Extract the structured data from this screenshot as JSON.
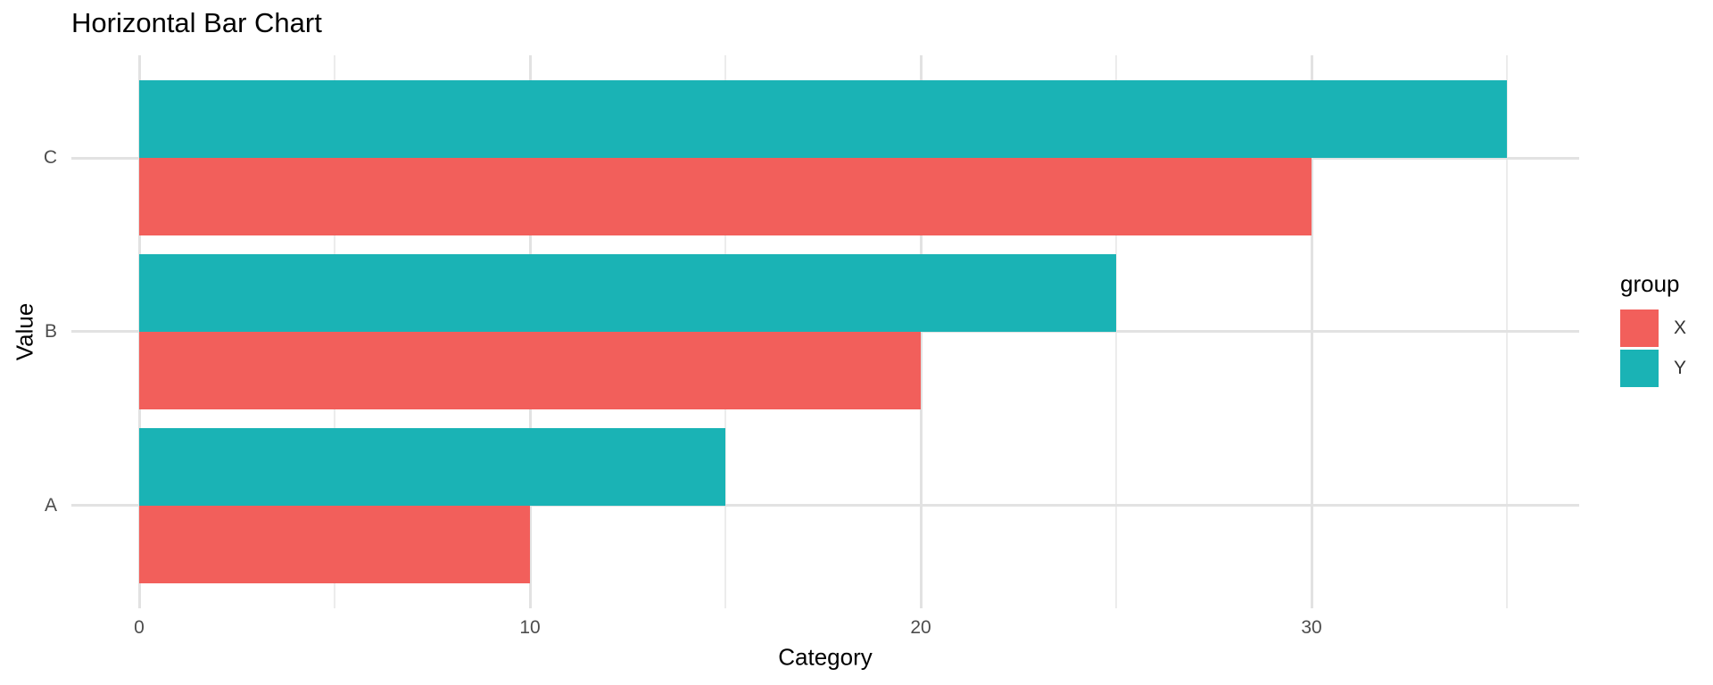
{
  "title": "Horizontal Bar Chart",
  "colors": {
    "background": "#FFFFFF",
    "series_x_red": "#F25F5B",
    "series_y_teal": "#1AB3B5",
    "grid_major": "#E2E2E2",
    "grid_minor": "#ECECEC",
    "axis_text": "#4D4D4D",
    "title_text": "#000000"
  },
  "chart_data": {
    "type": "bar",
    "orientation": "horizontal",
    "title": "Horizontal Bar Chart",
    "xlabel": "Category",
    "ylabel": "Value",
    "categories": [
      "A",
      "B",
      "C"
    ],
    "categories_display_order": [
      "C",
      "B",
      "A"
    ],
    "series": [
      {
        "name": "X",
        "color": "#F25F5B",
        "values": [
          10,
          20,
          30
        ]
      },
      {
        "name": "Y",
        "color": "#1AB3B5",
        "values": [
          15,
          25,
          35
        ]
      }
    ],
    "xlim": [
      0,
      35
    ],
    "x_major_ticks": [
      0,
      10,
      20,
      30
    ],
    "x_minor_gridlines": [
      5,
      15,
      25,
      35
    ],
    "grid": true,
    "legend_title": "group",
    "legend_position": "right"
  }
}
